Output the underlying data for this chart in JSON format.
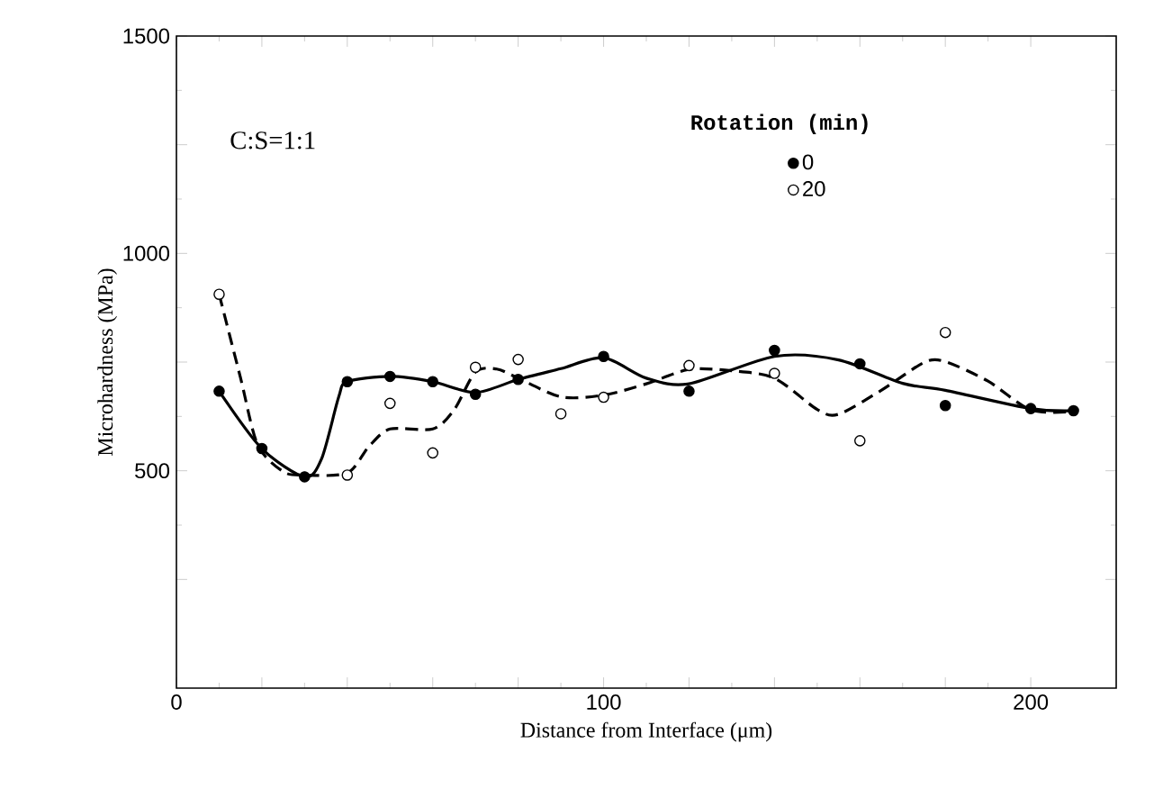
{
  "chart_data": {
    "type": "scatter",
    "xlabel": "Distance from Interface (μm)",
    "ylabel": "Microhardness (MPa)",
    "legend_title": "Rotation  (min)",
    "legend": "top right",
    "grid": false,
    "annotations": [
      "C:S=1:1"
    ],
    "xlim": [
      0,
      220
    ],
    "ylim": [
      0,
      1500
    ],
    "xticks": [
      0,
      {
        "value": 20,
        "label": null
      },
      {
        "value": 40,
        "label": null
      },
      {
        "value": 60,
        "label": null
      },
      {
        "value": 80,
        "label": null
      },
      100,
      {
        "value": 120,
        "label": null
      },
      {
        "value": 140,
        "label": null
      },
      {
        "value": 160,
        "label": null
      },
      {
        "value": 180,
        "label": null
      },
      200
    ],
    "yticks": [
      {
        "value": 250,
        "label": null
      },
      500,
      {
        "value": 750,
        "label": null
      },
      1000,
      {
        "value": 1250,
        "label": null
      },
      1500
    ],
    "series": [
      {
        "name": "0",
        "marker": "circle",
        "color": "#000000",
        "x": [
          10,
          20,
          30,
          40,
          50,
          60,
          70,
          80,
          100,
          120,
          140,
          160,
          180,
          200,
          210
        ],
        "values": [
          683,
          551,
          486,
          705,
          717,
          705,
          676,
          710,
          763,
          683,
          777,
          746,
          650,
          643,
          638
        ]
      },
      {
        "name": "20",
        "marker": "circle",
        "color": "#000000",
        "x": [
          10,
          40,
          50,
          60,
          70,
          80,
          90,
          100,
          120,
          140,
          160,
          180
        ],
        "values": [
          906,
          490,
          655,
          541,
          738,
          756,
          631,
          669,
          742,
          724,
          569,
          818
        ]
      },
      {
        "type": "line",
        "line_style": "solid",
        "color": "#000000",
        "x": [
          10,
          20,
          30,
          34,
          38,
          40,
          50,
          60,
          70,
          80,
          90,
          100,
          110,
          120,
          140,
          155,
          170,
          180,
          200,
          210
        ],
        "values": [
          683,
          551,
          486,
          528,
          670,
          705,
          717,
          705,
          680,
          710,
          735,
          760,
          713,
          700,
          763,
          755,
          701,
          685,
          643,
          638
        ]
      },
      {
        "type": "line",
        "line_style": "dashed",
        "color": "#000000",
        "x": [
          10,
          15,
          19,
          25,
          30,
          40,
          45,
          50,
          60,
          65,
          70,
          75,
          80,
          90,
          100,
          110,
          120,
          130,
          140,
          150,
          155,
          165,
          175,
          180,
          190,
          200,
          210
        ],
        "values": [
          906,
          714,
          560,
          498,
          490,
          495,
          555,
          596,
          596,
          640,
          727,
          734,
          713,
          670,
          674,
          700,
          733,
          730,
          713,
          641,
          630,
          685,
          749,
          751,
          706,
          640,
          636
        ]
      }
    ]
  }
}
